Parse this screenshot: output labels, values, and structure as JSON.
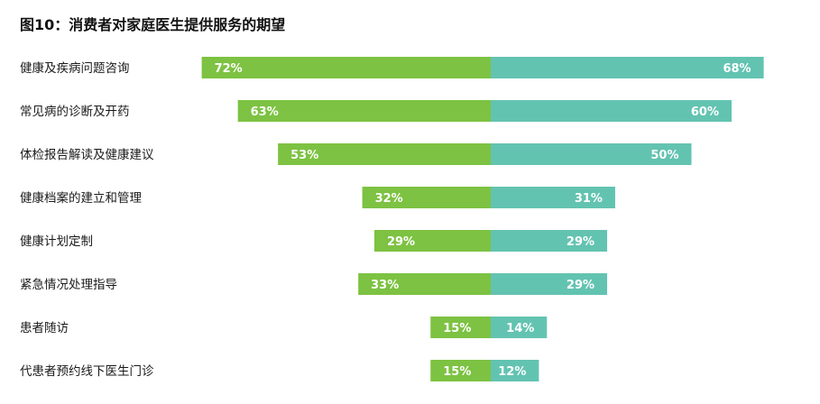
{
  "title": "图10：消费者对家庭医生提供服务的期望",
  "chart_data": {
    "type": "bar",
    "orientation": "horizontal-diverging",
    "title": "图10：消费者对家庭医生提供服务的期望",
    "unit": "%",
    "categories": [
      "健康及疾病问题咨询",
      "常见病的诊断及开药",
      "体检报告解读及健康建议",
      "健康档案的建立和管理",
      "健康计划定制",
      "紧急情况处理指导",
      "患者随访",
      "代患者预约线下医生门诊"
    ],
    "series": [
      {
        "values": [
          72,
          63,
          53,
          32,
          29,
          33,
          15,
          15
        ],
        "color": "#7dc242",
        "direction": "left"
      },
      {
        "values": [
          68,
          60,
          50,
          31,
          29,
          29,
          14,
          12
        ],
        "color": "#63c3b1",
        "direction": "right"
      }
    ],
    "xlim": [
      0,
      75
    ],
    "grid": false,
    "legend": "none"
  }
}
